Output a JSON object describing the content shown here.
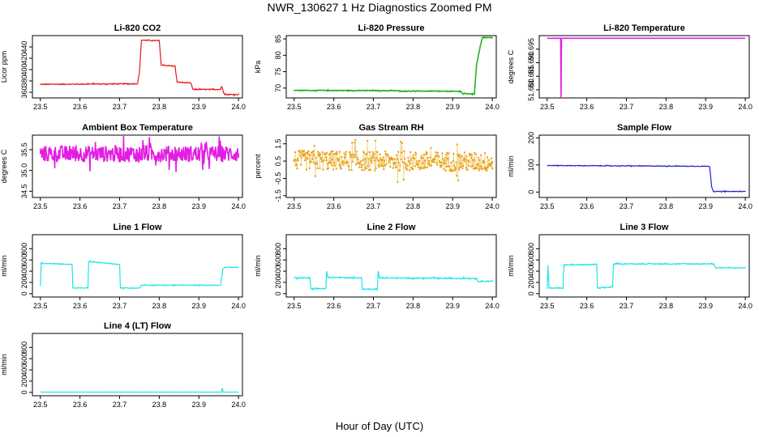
{
  "figure": {
    "title": "NWR_130627  1 Hz Diagnostics Zoomed PM",
    "xlabel": "Hour of Day (UTC)"
  },
  "chart_data": [
    {
      "type": "line",
      "title": "Li-820 CO2",
      "ylabel": "Licor ppm",
      "color": "#e8161b",
      "xlim": [
        23.48,
        24.01
      ],
      "ylim": [
        350,
        460
      ],
      "xticks": [
        23.5,
        23.6,
        23.7,
        23.8,
        23.9,
        24.0
      ],
      "yticks": [
        360,
        380,
        400,
        420,
        440
      ],
      "noise": 0.8,
      "x": [
        23.5,
        23.745,
        23.75,
        23.755,
        23.8,
        23.805,
        23.84,
        23.845,
        23.88,
        23.885,
        23.955,
        23.957,
        23.96,
        23.962,
        23.965,
        23.97,
        24.0
      ],
      "y": [
        374,
        375,
        395,
        452,
        451,
        408,
        406,
        378,
        376,
        365,
        365,
        370,
        366,
        360,
        357,
        356,
        356
      ]
    },
    {
      "type": "line",
      "title": "Li-820 Pressure",
      "ylabel": "kPa",
      "color": "#22b322",
      "xlim": [
        23.48,
        24.01
      ],
      "ylim": [
        67,
        86
      ],
      "xticks": [
        23.5,
        23.6,
        23.7,
        23.8,
        23.9,
        24.0
      ],
      "yticks": [
        70,
        75,
        80,
        85
      ],
      "noise": 0.1,
      "x": [
        23.5,
        23.76,
        23.765,
        23.92,
        23.925,
        23.955,
        23.96,
        23.97,
        23.975,
        24.0
      ],
      "y": [
        69.3,
        69.2,
        69.1,
        69.0,
        68.3,
        68.2,
        77,
        83,
        85.4,
        85.4
      ]
    },
    {
      "type": "line",
      "title": "Li-820 Temperature",
      "ylabel": "degrees C",
      "color": "#e21ee2",
      "xlim": [
        23.48,
        24.01
      ],
      "ylim": [
        51.677,
        51.7
      ],
      "xticks": [
        23.5,
        23.6,
        23.7,
        23.8,
        23.9,
        24.0
      ],
      "yticks": [
        51.68,
        51.685,
        51.69,
        51.695
      ],
      "y_tick_labels": [
        "51.680",
        "51.685",
        "51.690",
        "51.695"
      ],
      "noise": 0,
      "x": [
        23.5,
        23.534,
        23.535,
        23.536,
        24.0
      ],
      "y": [
        51.699,
        51.699,
        51.677,
        51.699,
        51.699
      ]
    },
    {
      "type": "line",
      "title": "Ambient Box Temperature",
      "ylabel": "degrees C",
      "color": "#e21ee2",
      "xlim": [
        23.48,
        24.01
      ],
      "ylim": [
        34.35,
        35.85
      ],
      "xticks": [
        23.5,
        23.6,
        23.7,
        23.8,
        23.9,
        24.0
      ],
      "yticks": [
        34.5,
        35.0,
        35.5
      ],
      "y_tick_labels": [
        "34.5",
        "35.0",
        "35.5"
      ],
      "noise": 0.2,
      "x": [
        23.5,
        24.0
      ],
      "y": [
        35.4,
        35.4
      ]
    },
    {
      "type": "scatter",
      "title": "Gas Stream RH",
      "ylabel": "percent",
      "color": "#e8a317",
      "xlim": [
        23.48,
        24.01
      ],
      "ylim": [
        -1.6,
        2.0
      ],
      "xticks": [
        23.5,
        23.6,
        23.7,
        23.8,
        23.9,
        24.0
      ],
      "yticks": [
        -1.5,
        -0.5,
        0.5,
        1.5
      ],
      "y_tick_labels": [
        "-1.5",
        "-0.5",
        "0.5",
        "1.5"
      ],
      "noise": 0.35,
      "x": [
        23.5,
        24.0
      ],
      "y": [
        0.55,
        0.45
      ]
    },
    {
      "type": "line",
      "title": "Sample Flow",
      "ylabel": "ml/min",
      "color": "#1f1fcf",
      "xlim": [
        23.48,
        24.01
      ],
      "ylim": [
        -20,
        210
      ],
      "xticks": [
        23.5,
        23.6,
        23.7,
        23.8,
        23.9,
        24.0
      ],
      "yticks": [
        0,
        100,
        200
      ],
      "noise": 1.2,
      "x": [
        23.5,
        23.91,
        23.915,
        23.92,
        24.0
      ],
      "y": [
        98,
        95,
        20,
        2,
        2
      ]
    },
    {
      "type": "line",
      "title": "Line 1 Flow",
      "ylabel": "ml/min",
      "color": "#1fe5e8",
      "xlim": [
        23.48,
        24.01
      ],
      "ylim": [
        -60,
        1050
      ],
      "xticks": [
        23.5,
        23.6,
        23.7,
        23.8,
        23.9,
        24.0
      ],
      "yticks": [
        0,
        200,
        400,
        600,
        800
      ],
      "noise": 6,
      "x": [
        23.5,
        23.502,
        23.505,
        23.58,
        23.582,
        23.62,
        23.622,
        23.625,
        23.7,
        23.702,
        23.75,
        23.755,
        23.955,
        23.96,
        23.965,
        24.0
      ],
      "y": [
        140,
        560,
        540,
        520,
        100,
        100,
        560,
        570,
        520,
        100,
        100,
        150,
        150,
        430,
        470,
        470
      ]
    },
    {
      "type": "line",
      "title": "Line 2 Flow",
      "ylabel": "ml/min",
      "color": "#1fe5e8",
      "xlim": [
        23.48,
        24.01
      ],
      "ylim": [
        -60,
        1050
      ],
      "xticks": [
        23.5,
        23.6,
        23.7,
        23.8,
        23.9,
        24.0
      ],
      "yticks": [
        0,
        200,
        400,
        600,
        800
      ],
      "noise": 10,
      "x": [
        23.5,
        23.54,
        23.542,
        23.58,
        23.582,
        23.585,
        23.67,
        23.672,
        23.71,
        23.712,
        23.715,
        23.96,
        23.963,
        24.0
      ],
      "y": [
        280,
        280,
        90,
        90,
        400,
        290,
        280,
        80,
        80,
        400,
        280,
        270,
        220,
        220
      ]
    },
    {
      "type": "line",
      "title": "Line 3 Flow",
      "ylabel": "ml/min",
      "color": "#1fe5e8",
      "xlim": [
        23.48,
        24.01
      ],
      "ylim": [
        -60,
        1050
      ],
      "xticks": [
        23.5,
        23.6,
        23.7,
        23.8,
        23.9,
        24.0
      ],
      "yticks": [
        0,
        200,
        400,
        600,
        800
      ],
      "noise": 8,
      "x": [
        23.5,
        23.502,
        23.505,
        23.54,
        23.542,
        23.545,
        23.625,
        23.627,
        23.63,
        23.665,
        23.667,
        23.67,
        23.92,
        23.925,
        24.0
      ],
      "y": [
        90,
        500,
        100,
        100,
        500,
        510,
        520,
        100,
        100,
        120,
        500,
        530,
        530,
        460,
        460
      ]
    },
    {
      "type": "line",
      "title": "Line 4 (LT) Flow",
      "ylabel": "ml/min",
      "color": "#1fe5e8",
      "xlim": [
        23.48,
        24.01
      ],
      "ylim": [
        -60,
        1050
      ],
      "xticks": [
        23.5,
        23.6,
        23.7,
        23.8,
        23.9,
        24.0
      ],
      "yticks": [
        0,
        200,
        400,
        600,
        800
      ],
      "noise": 0.5,
      "x": [
        23.5,
        23.957,
        23.959,
        23.961,
        24.0
      ],
      "y": [
        5,
        5,
        80,
        5,
        5
      ]
    }
  ]
}
